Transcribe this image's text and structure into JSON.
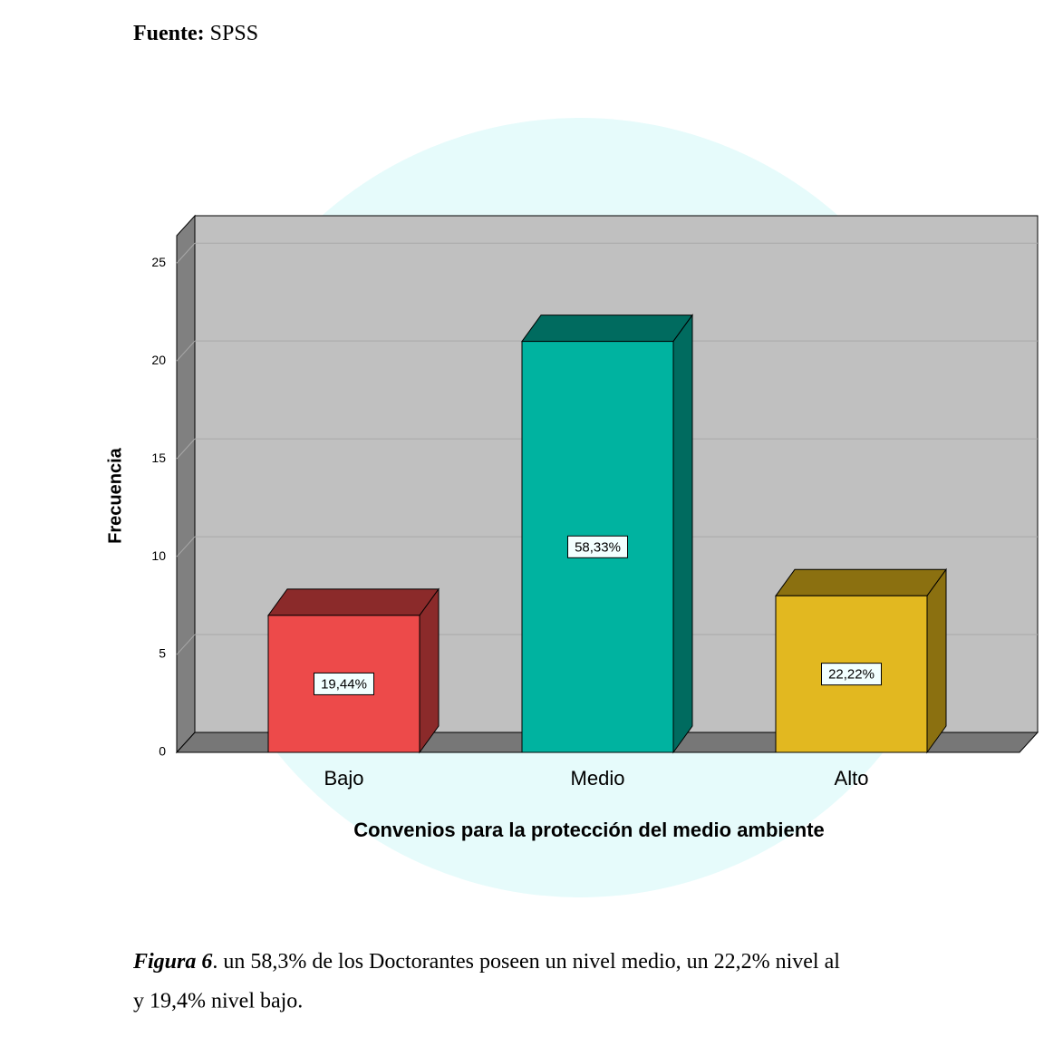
{
  "source": {
    "label": "Fuente:",
    "text": "SPSS"
  },
  "chart_data": {
    "type": "bar3d",
    "ylabel": "Frecuencia",
    "xlabel": "Convenios para la protección del medio ambiente",
    "categories": [
      "Bajo",
      "Medio",
      "Alto"
    ],
    "values": [
      7,
      21,
      8
    ],
    "colors": [
      "#ed4a4a",
      "#00b3a0",
      "#e2b820"
    ],
    "side_colors": [
      "#8b2a2a",
      "#006b5f",
      "#8b7010"
    ],
    "percentages": [
      {
        "value": 19.44,
        "label": "19,44%"
      },
      {
        "value": 58.33,
        "label": "58,33%"
      },
      {
        "value": 22.22,
        "label": "22,22%"
      }
    ],
    "ylim": [
      0,
      26.4
    ],
    "yticks": [
      0,
      5,
      10,
      15,
      20,
      25
    ],
    "grid": true
  },
  "caption": {
    "label": "Figura 6",
    "line1": ". un 58,3% de los Doctorantes poseen un nivel medio, un 22,2% nivel al",
    "line2": "y 19,4% nivel bajo."
  }
}
